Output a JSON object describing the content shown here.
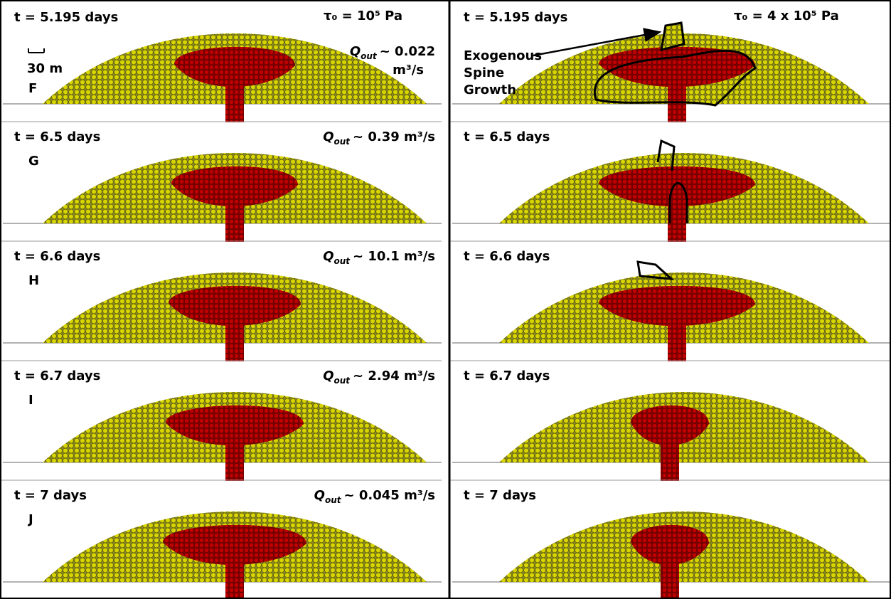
{
  "left": {
    "header": "τ₀ = 10⁵ Pa",
    "scale": "30 m",
    "panels": [
      {
        "time": "t = 5.195 days",
        "letter": "F",
        "q": {
          "symbol": "Q",
          "subscript": "out",
          "text": "~ 0.022",
          "text2": "m³/s"
        }
      },
      {
        "time": "t = 6.5 days",
        "letter": "G",
        "q": {
          "symbol": "Q",
          "subscript": "out",
          "text": "~ 0.39 m³/s"
        }
      },
      {
        "time": "t = 6.6 days",
        "letter": "H",
        "q": {
          "symbol": "Q",
          "subscript": "out",
          "text": "~ 10.1 m³/s"
        }
      },
      {
        "time": "t = 6.7 days",
        "letter": "I",
        "q": {
          "symbol": "Q",
          "subscript": "out",
          "text": "~ 2.94 m³/s"
        }
      },
      {
        "time": "t = 7 days",
        "letter": "J",
        "q": {
          "symbol": "Q",
          "subscript": "out",
          "text": "~ 0.045 m³/s"
        }
      }
    ]
  },
  "right": {
    "header": "τ₀ = 4 x 10⁵ Pa",
    "annotation": [
      "Exogenous",
      "Spine",
      "Growth"
    ],
    "panels": [
      {
        "time": "t = 5.195 days"
      },
      {
        "time": "t = 6.5 days"
      },
      {
        "time": "t = 6.6 days"
      },
      {
        "time": "t = 6.7 days"
      },
      {
        "time": "t = 7 days"
      }
    ]
  }
}
